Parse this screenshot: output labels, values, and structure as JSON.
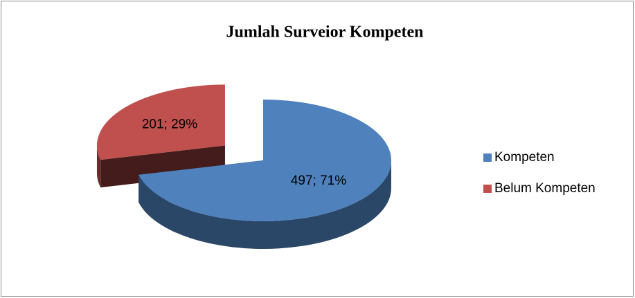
{
  "chart_data": {
    "type": "pie",
    "title": "Jumlah Surveior Kompeten",
    "categories": [
      "Kompeten",
      "Belum Kompeten"
    ],
    "values": [
      497,
      201
    ],
    "value_labels": [
      "497; 71%",
      "201; 29%"
    ],
    "colors": [
      "#4f81bd",
      "#c0504d"
    ],
    "exploded": [
      false,
      true
    ],
    "legend": "right"
  }
}
